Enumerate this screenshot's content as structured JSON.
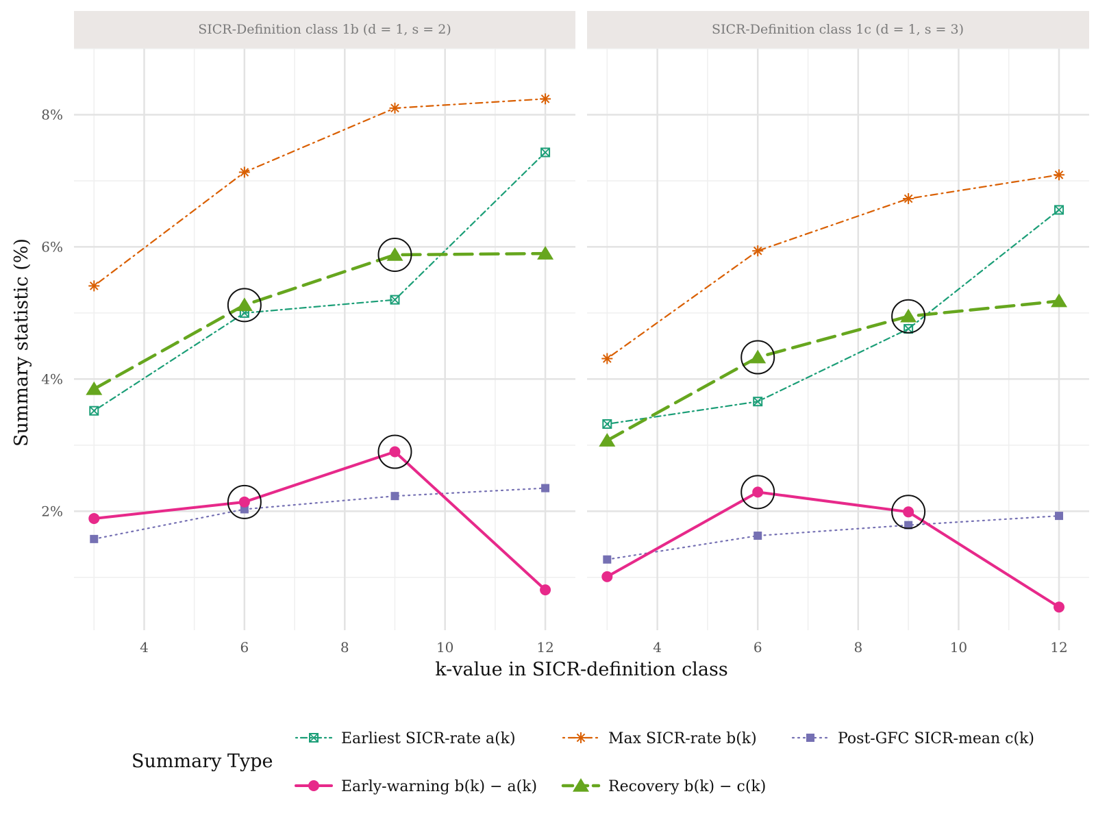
{
  "chart_data": {
    "type": "line",
    "ylabel": "Summary statistic (%)",
    "xlabel": "k-value in SICR-definition class",
    "x_ticks": [
      4,
      6,
      8,
      10,
      12
    ],
    "x_tick_labels": [
      "4",
      "6",
      "8",
      "10",
      "12"
    ],
    "xlim": [
      2.6,
      12.6
    ],
    "y_ticks": [
      2,
      4,
      6,
      8
    ],
    "y_tick_labels": [
      "2%",
      "4%",
      "6%",
      "8%"
    ],
    "ylim": [
      0.2,
      9.0
    ],
    "grid": true,
    "legend_position": "bottom",
    "legend_title": "Summary Type",
    "series_meta": [
      {
        "key": "earliest",
        "name": "Earliest SICR-rate a(k)",
        "color": "#1b9e77",
        "marker": "square-x",
        "dash": "dotdash"
      },
      {
        "key": "max",
        "name": "Max SICR-rate b(k)",
        "color": "#d95f02",
        "marker": "asterisk",
        "dash": "dotdash2"
      },
      {
        "key": "postgfc",
        "name": "Post-GFC SICR-mean c(k)",
        "color": "#7570b3",
        "marker": "square",
        "dash": "dotted"
      },
      {
        "key": "earlywarning",
        "name": "Early-warning b(k) − a(k)",
        "color": "#e7298a",
        "marker": "circle",
        "dash": "solid"
      },
      {
        "key": "recovery",
        "name": "Recovery b(k) − c(k)",
        "color": "#66a61e",
        "marker": "triangle",
        "dash": "longdash"
      }
    ],
    "panels": [
      {
        "title": "SICR-Definition class 1b (d = 1, s = 2)",
        "x": [
          3,
          6,
          9,
          12
        ],
        "series": {
          "earliest": [
            3.52,
            5.0,
            5.2,
            7.43
          ],
          "max": [
            5.41,
            7.13,
            8.1,
            8.24
          ],
          "postgfc": [
            1.58,
            2.03,
            2.23,
            2.35
          ],
          "earlywarning": [
            1.89,
            2.14,
            2.9,
            0.81
          ],
          "recovery": [
            3.85,
            5.12,
            5.88,
            5.9
          ]
        },
        "highlights": [
          {
            "series": "recovery",
            "x": 6
          },
          {
            "series": "recovery",
            "x": 9
          },
          {
            "series": "earlywarning",
            "x": 6
          },
          {
            "series": "earlywarning",
            "x": 9
          }
        ]
      },
      {
        "title": "SICR-Definition class 1c (d = 1, s = 3)",
        "x": [
          3,
          6,
          9,
          12
        ],
        "series": {
          "earliest": [
            3.32,
            3.66,
            4.76,
            6.56
          ],
          "max": [
            4.31,
            5.94,
            6.73,
            7.09
          ],
          "postgfc": [
            1.27,
            1.63,
            1.79,
            1.93
          ],
          "earlywarning": [
            1.01,
            2.29,
            1.99,
            0.55
          ],
          "recovery": [
            3.07,
            4.33,
            4.95,
            5.18
          ]
        },
        "highlights": [
          {
            "series": "recovery",
            "x": 6
          },
          {
            "series": "recovery",
            "x": 9
          },
          {
            "series": "earlywarning",
            "x": 6
          },
          {
            "series": "earlywarning",
            "x": 9
          }
        ]
      }
    ]
  }
}
